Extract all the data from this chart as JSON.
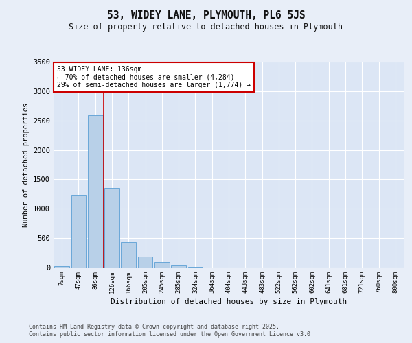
{
  "title": "53, WIDEY LANE, PLYMOUTH, PL6 5JS",
  "subtitle": "Size of property relative to detached houses in Plymouth",
  "xlabel": "Distribution of detached houses by size in Plymouth",
  "ylabel": "Number of detached properties",
  "bar_color": "#b8d0e8",
  "bar_edge_color": "#5a9fd4",
  "bg_color": "#dce6f5",
  "fig_color": "#e8eef8",
  "grid_color": "#ffffff",
  "categories": [
    "7sqm",
    "47sqm",
    "86sqm",
    "126sqm",
    "166sqm",
    "205sqm",
    "245sqm",
    "285sqm",
    "324sqm",
    "364sqm",
    "404sqm",
    "443sqm",
    "483sqm",
    "522sqm",
    "562sqm",
    "602sqm",
    "641sqm",
    "681sqm",
    "721sqm",
    "760sqm",
    "800sqm"
  ],
  "values": [
    20,
    1240,
    2590,
    1355,
    435,
    185,
    95,
    30,
    10,
    5,
    0,
    0,
    0,
    0,
    0,
    0,
    0,
    0,
    0,
    0,
    0
  ],
  "ylim": [
    0,
    3500
  ],
  "yticks": [
    0,
    500,
    1000,
    1500,
    2000,
    2500,
    3000,
    3500
  ],
  "vline_pos": 2.5,
  "annotation_text": "53 WIDEY LANE: 136sqm\n← 70% of detached houses are smaller (4,284)\n29% of semi-detached houses are larger (1,774) →",
  "annotation_box_color": "#ffffff",
  "annotation_box_edge": "#cc0000",
  "vline_color": "#cc0000",
  "footer_line1": "Contains HM Land Registry data © Crown copyright and database right 2025.",
  "footer_line2": "Contains public sector information licensed under the Open Government Licence v3.0."
}
